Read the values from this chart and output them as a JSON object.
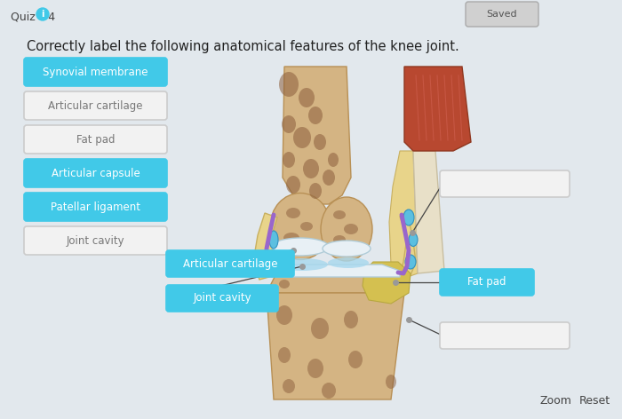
{
  "title": "Correctly label the following anatomical features of the knee joint.",
  "quiz_label": "Quiz #4",
  "saved_label": "Saved",
  "zoom_reset": [
    "Zoom",
    "Reset"
  ],
  "bg_color": "#e2e8ed",
  "left_buttons": [
    {
      "text": "Synovial membrane",
      "filled": true
    },
    {
      "text": "Articular cartilage",
      "filled": false
    },
    {
      "text": "Fat pad",
      "filled": false
    },
    {
      "text": "Articular capsule",
      "filled": true
    },
    {
      "text": "Patellar ligament",
      "filled": true
    },
    {
      "text": "Joint cavity",
      "filled": false
    }
  ],
  "button_filled_color": "#41c9e8",
  "button_filled_text_color": "#ffffff",
  "button_empty_color": "#f2f2f2",
  "button_empty_text_color": "#777777",
  "button_empty_border": "#cccccc",
  "title_fontsize": 10.5,
  "button_fontsize": 8.5
}
